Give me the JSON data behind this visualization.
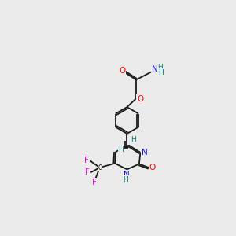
{
  "background_color": "#ebebeb",
  "atom_colors": {
    "C": "#000000",
    "N": "#1414ff",
    "O": "#ff0000",
    "F": "#ff00ff",
    "H": "#008080"
  },
  "bond_color": "#1a1a1a",
  "bond_lw": 1.3,
  "figsize": [
    3.0,
    3.0
  ],
  "dpi": 100,
  "xlim": [
    0,
    300
  ],
  "ylim": [
    0,
    300
  ]
}
